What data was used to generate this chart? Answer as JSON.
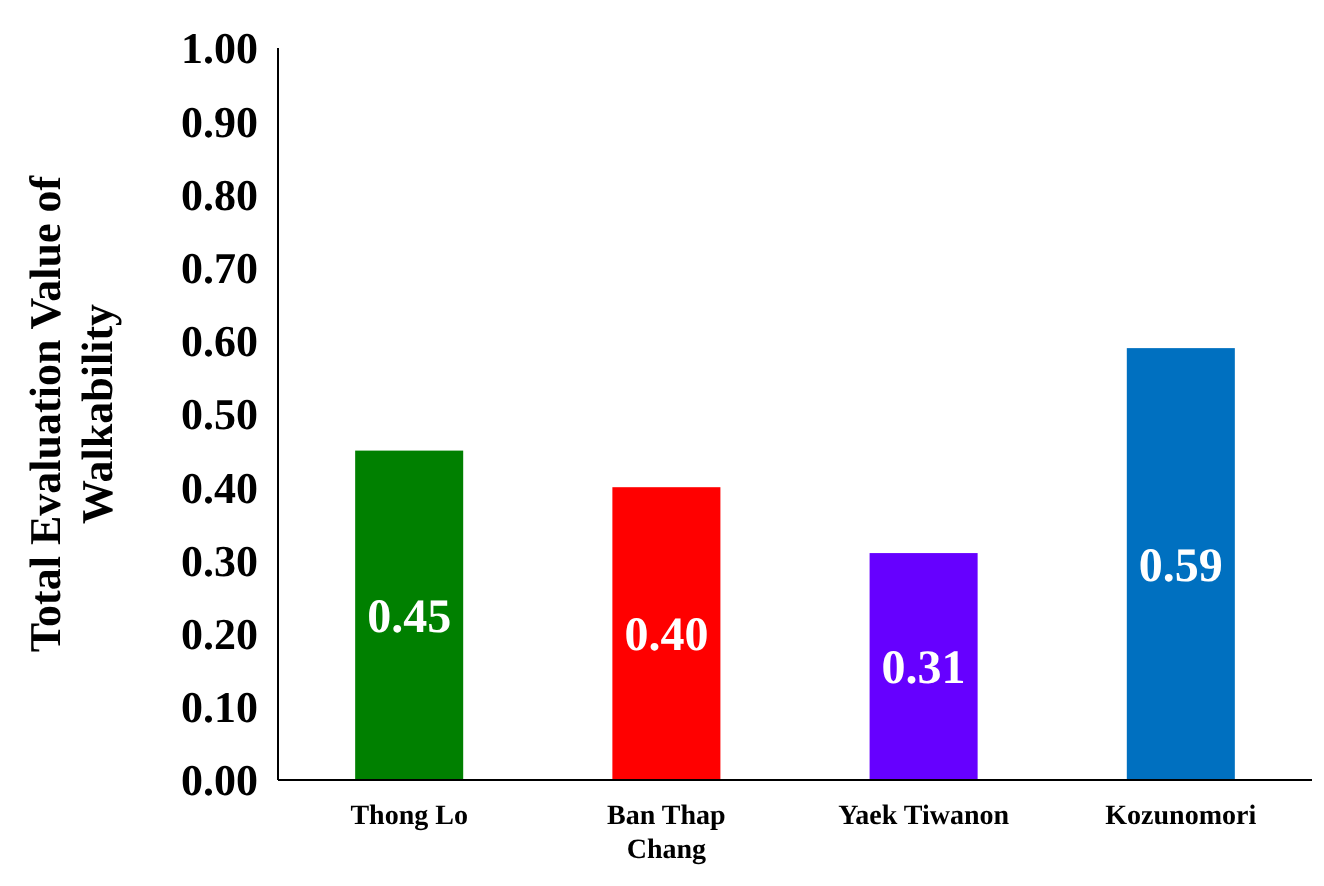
{
  "chart_data": {
    "type": "bar",
    "ylabel": "Total Evaluation Value of Walkability",
    "categories": [
      "Thong Lo",
      "Ban Thap Chang",
      "Yaek Tiwanon",
      "Kozunomori"
    ],
    "values": [
      0.45,
      0.4,
      0.31,
      0.59
    ],
    "colors": [
      "#008000",
      "#ff0000",
      "#6600ff",
      "#0070c0"
    ],
    "ylim": [
      0,
      1
    ],
    "yticks": [
      {
        "value": 0,
        "label": "0.00"
      },
      {
        "value": 0.1,
        "label": "0.10"
      },
      {
        "value": 0.2,
        "label": "0.20"
      },
      {
        "value": 0.3,
        "label": "0.30"
      },
      {
        "value": 0.4,
        "label": "0.40"
      },
      {
        "value": 0.5,
        "label": "0.50"
      },
      {
        "value": 0.6,
        "label": "0.60"
      },
      {
        "value": 0.7,
        "label": "0.70"
      },
      {
        "value": 0.8,
        "label": "0.80"
      },
      {
        "value": 0.9,
        "label": "0.90"
      },
      {
        "value": 1,
        "label": "1.00"
      }
    ],
    "value_labels": [
      "0.45",
      "0.40",
      "0.31",
      "0.59"
    ],
    "grid": false
  }
}
